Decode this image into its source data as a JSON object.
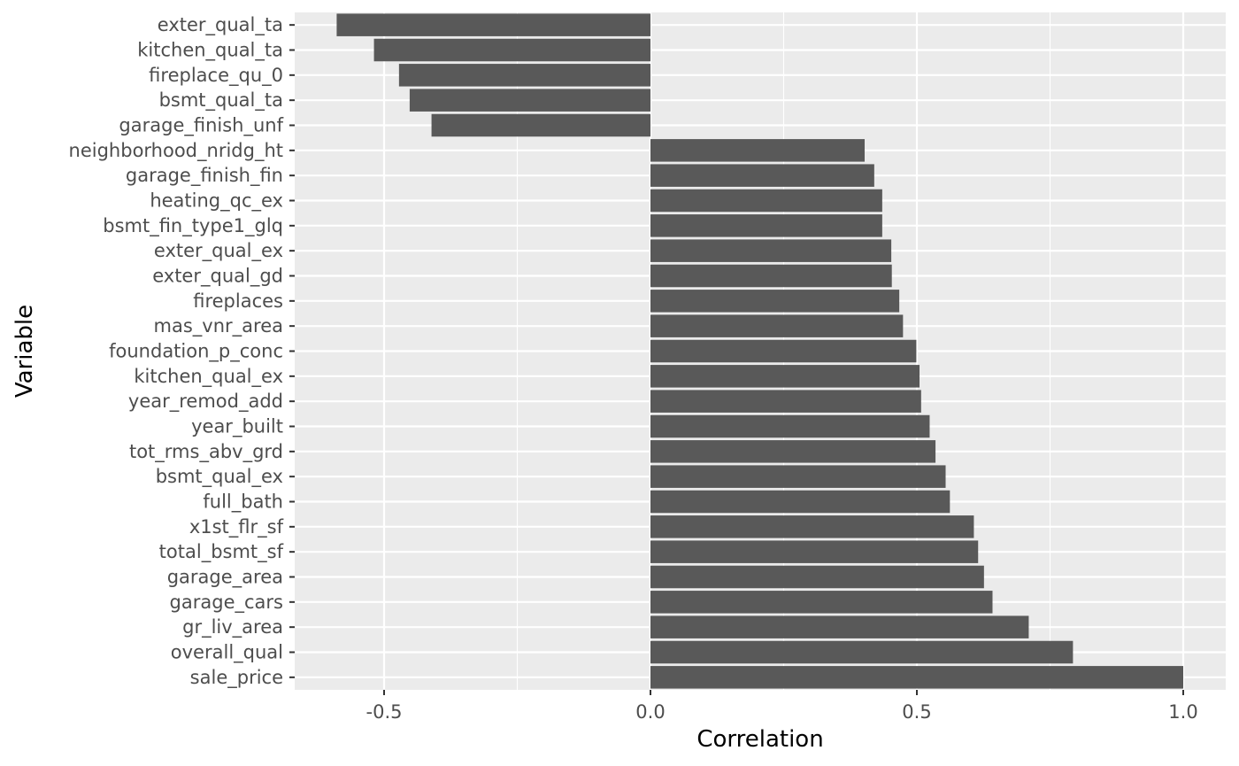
{
  "chart_data": {
    "type": "bar",
    "orientation": "horizontal",
    "xlabel": "Correlation",
    "ylabel": "Variable",
    "xlim": [
      -0.667,
      1.08
    ],
    "x_ticks": [
      -0.5,
      0.0,
      0.5,
      1.0
    ],
    "x_tick_labels": [
      "-0.5",
      "0.0",
      "0.5",
      "1.0"
    ],
    "grid": true,
    "colors": {
      "panel": "#ebebeb",
      "grid": "#ffffff",
      "bar": "#595959",
      "tick_text": "#4d4d4d"
    },
    "categories": [
      "exter_qual_ta",
      "kitchen_qual_ta",
      "fireplace_qu_0",
      "bsmt_qual_ta",
      "garage_finish_unf",
      "neighborhood_nridg_ht",
      "garage_finish_fin",
      "heating_qc_ex",
      "bsmt_fin_type1_glq",
      "exter_qual_ex",
      "exter_qual_gd",
      "fireplaces",
      "mas_vnr_area",
      "foundation_p_conc",
      "kitchen_qual_ex",
      "year_remod_add",
      "year_built",
      "tot_rms_abv_grd",
      "bsmt_qual_ex",
      "full_bath",
      "x1st_flr_sf",
      "total_bsmt_sf",
      "garage_area",
      "garage_cars",
      "gr_liv_area",
      "overall_qual",
      "sale_price"
    ],
    "values": [
      -0.589,
      -0.519,
      -0.472,
      -0.452,
      -0.411,
      0.402,
      0.42,
      0.435,
      0.435,
      0.452,
      0.453,
      0.467,
      0.474,
      0.499,
      0.505,
      0.508,
      0.524,
      0.535,
      0.554,
      0.562,
      0.607,
      0.615,
      0.626,
      0.642,
      0.71,
      0.793,
      1.0
    ]
  }
}
